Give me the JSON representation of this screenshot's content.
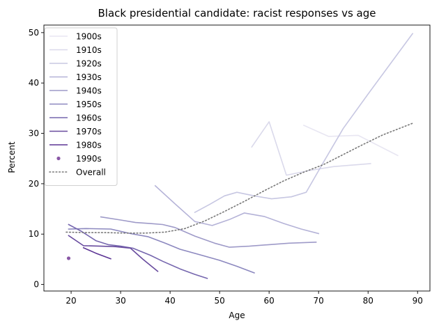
{
  "chart_data": {
    "type": "line",
    "title": "Black presidential candidate: racist responses vs age",
    "xlabel": "Age",
    "ylabel": "Percent",
    "xlim": [
      14.5,
      92.5
    ],
    "ylim": [
      -1.3,
      51.5
    ],
    "xticks": [
      20,
      30,
      40,
      50,
      60,
      70,
      80,
      90
    ],
    "yticks": [
      0,
      10,
      20,
      30,
      40,
      50
    ],
    "grid": false,
    "legend_position": "top-left",
    "series": [
      {
        "name": "1900s",
        "color": "#e8e6f2",
        "style": "line",
        "x": [
          67,
          72,
          78,
          86
        ],
        "y": [
          31.6,
          29.4,
          29.6,
          25.6
        ]
      },
      {
        "name": "1910s",
        "color": "#dad9eb",
        "style": "line",
        "x": [
          56.5,
          60,
          63.5,
          68,
          73,
          80.5
        ],
        "y": [
          27.3,
          32.3,
          21.7,
          22.6,
          23.4,
          24.0
        ]
      },
      {
        "name": "1920s",
        "color": "#c7c7e2",
        "style": "line",
        "x": [
          45,
          48,
          51,
          53.5,
          57,
          60.5,
          64.5,
          67.5,
          71,
          75,
          80,
          89
        ],
        "y": [
          14.3,
          15.9,
          17.6,
          18.3,
          17.6,
          17.0,
          17.4,
          18.3,
          24.3,
          31.0,
          37.8,
          49.8
        ]
      },
      {
        "name": "1930s",
        "color": "#b4b2d7",
        "style": "line",
        "x": [
          37,
          41,
          45,
          48.5,
          52,
          55,
          59,
          63,
          66.5,
          70
        ],
        "y": [
          19.6,
          16.0,
          12.5,
          11.7,
          12.9,
          14.2,
          13.5,
          12.1,
          11.0,
          10.1
        ]
      },
      {
        "name": "1940s",
        "color": "#9e9ac8",
        "style": "line",
        "x": [
          26,
          30,
          33,
          36,
          38.5,
          41,
          45,
          49,
          52,
          56,
          60,
          64,
          69.5
        ],
        "y": [
          13.4,
          12.8,
          12.3,
          12.1,
          11.9,
          11.3,
          9.6,
          8.2,
          7.4,
          7.6,
          7.9,
          8.2,
          8.4
        ]
      },
      {
        "name": "1950s",
        "color": "#8c88bf",
        "style": "line",
        "x": [
          19.5,
          23,
          28,
          32,
          35.5,
          39,
          42,
          46,
          50,
          53.5,
          57
        ],
        "y": [
          11.0,
          11.1,
          11.0,
          10.1,
          9.5,
          8.2,
          7.0,
          5.9,
          4.8,
          3.6,
          2.3
        ]
      },
      {
        "name": "1960s",
        "color": "#7566ae",
        "style": "line",
        "x": [
          19.5,
          22,
          25,
          27.5,
          30,
          32.5,
          36,
          38.5,
          42,
          45,
          47.5
        ],
        "y": [
          11.9,
          10.6,
          8.7,
          7.9,
          7.6,
          7.2,
          5.8,
          4.6,
          3.1,
          2.0,
          1.2
        ]
      },
      {
        "name": "1970s",
        "color": "#684b9e",
        "style": "line",
        "x": [
          19.5,
          22.5,
          26,
          29,
          32,
          34.5,
          37.5
        ],
        "y": [
          9.7,
          7.7,
          7.6,
          7.5,
          7.2,
          5.0,
          2.6
        ]
      },
      {
        "name": "1980s",
        "color": "#5b3394",
        "style": "line",
        "x": [
          22.5,
          25,
          28
        ],
        "y": [
          7.3,
          6.2,
          5.1
        ]
      },
      {
        "name": "1990s",
        "color": "#8a58a6",
        "style": "point",
        "x": [
          19.5
        ],
        "y": [
          5.2
        ]
      },
      {
        "name": "Overall",
        "color": "#777777",
        "style": "dotted",
        "x": [
          19,
          23,
          27,
          31,
          35,
          39,
          43,
          47,
          51,
          55,
          59,
          63,
          67,
          71,
          75,
          79,
          83,
          89
        ],
        "y": [
          10.4,
          10.3,
          10.3,
          10.2,
          10.2,
          10.4,
          11.1,
          12.6,
          14.5,
          16.5,
          18.6,
          20.6,
          22.3,
          23.8,
          25.8,
          27.8,
          29.7,
          32.0
        ]
      }
    ]
  }
}
